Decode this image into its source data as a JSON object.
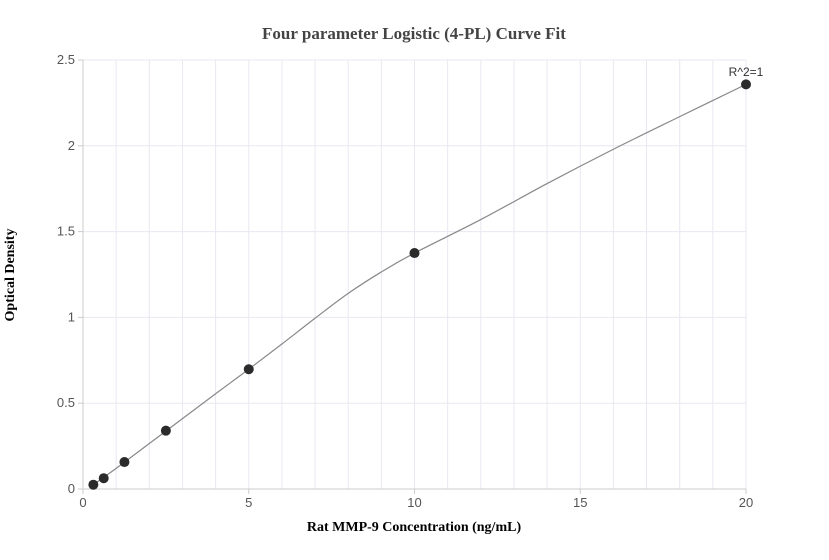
{
  "chart_data": {
    "type": "scatter",
    "title": "Four parameter Logistic (4-PL) Curve Fit",
    "xlabel": "Rat MMP-9 Concentration (ng/mL)",
    "ylabel": "Optical Density",
    "xlim": [
      0,
      20
    ],
    "ylim": [
      0,
      2.5
    ],
    "x_ticks": [
      "0",
      "5",
      "10",
      "15",
      "20"
    ],
    "y_ticks": [
      "0",
      "0.5",
      "1",
      "1.5",
      "2",
      "2.5"
    ],
    "grid": true,
    "annotation": "R^2=1",
    "series": [
      {
        "x": [
          0.3125,
          0.625,
          1.25,
          2.5,
          5,
          10,
          20
        ],
        "y": [
          0.025,
          0.063,
          0.157,
          0.34,
          0.698,
          1.375,
          2.358
        ]
      }
    ],
    "fit_curve": {
      "x": [
        0.3125,
        1,
        2,
        3,
        4,
        5,
        6,
        7,
        8,
        9,
        10,
        12,
        14,
        16,
        18,
        20
      ],
      "y": [
        0.025,
        0.12,
        0.265,
        0.41,
        0.555,
        0.698,
        0.845,
        0.995,
        1.14,
        1.265,
        1.375,
        1.57,
        1.78,
        1.98,
        2.17,
        2.358
      ]
    },
    "colors": {
      "marker": "#2b2b2b",
      "curve": "#888888",
      "grid": "#e8e8f2",
      "axis": "#cccccc"
    }
  }
}
